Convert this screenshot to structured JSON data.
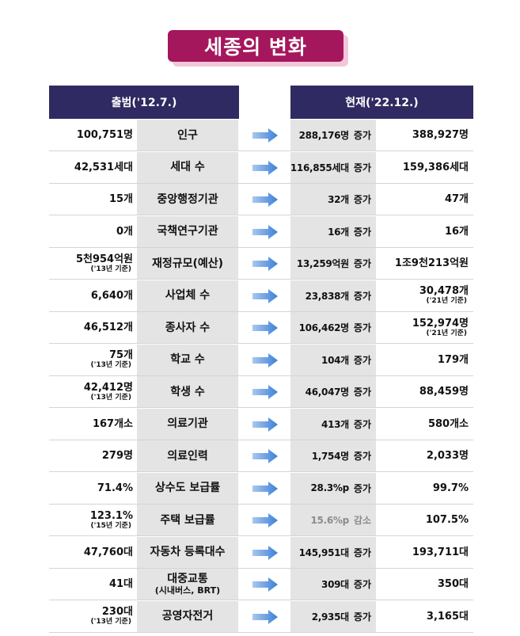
{
  "title": "세종의 변화",
  "headers": {
    "before": "출범('12.7.)",
    "after": "현재('22.12.)"
  },
  "colors": {
    "title_bg": "#a5175c",
    "header_bg": "#302a62",
    "label_bg": "#e4e4e4",
    "arrow": "#3d7fd6",
    "decrease_text": "#8c8c8c"
  },
  "icon": "right-arrow-icon",
  "rows": [
    {
      "label": "인구",
      "label_sub": "",
      "before": "100,751명",
      "before_note": "",
      "change": "288,176명",
      "direction": "증가",
      "after": "388,927명",
      "after_note": ""
    },
    {
      "label": "세대 수",
      "label_sub": "",
      "before": "42,531세대",
      "before_note": "",
      "change": "116,855세대",
      "direction": "증가",
      "after": "159,386세대",
      "after_note": ""
    },
    {
      "label": "중앙행정기관",
      "label_sub": "",
      "before": "15개",
      "before_note": "",
      "change": "32개",
      "direction": "증가",
      "after": "47개",
      "after_note": ""
    },
    {
      "label": "국책연구기관",
      "label_sub": "",
      "before": "0개",
      "before_note": "",
      "change": "16개",
      "direction": "증가",
      "after": "16개",
      "after_note": ""
    },
    {
      "label": "재정규모(예산)",
      "label_sub": "",
      "before": "5천954억원",
      "before_note": "('13년 기준)",
      "change": "13,259억원",
      "direction": "증가",
      "after": "1조9천213억원",
      "after_note": ""
    },
    {
      "label": "사업체 수",
      "label_sub": "",
      "before": "6,640개",
      "before_note": "",
      "change": "23,838개",
      "direction": "증가",
      "after": "30,478개",
      "after_note": "('21년 기준)"
    },
    {
      "label": "종사자 수",
      "label_sub": "",
      "before": "46,512개",
      "before_note": "",
      "change": "106,462명",
      "direction": "증가",
      "after": "152,974명",
      "after_note": "('21년 기준)"
    },
    {
      "label": "학교 수",
      "label_sub": "",
      "before": "75개",
      "before_note": "('13년 기준)",
      "change": "104개",
      "direction": "증가",
      "after": "179개",
      "after_note": ""
    },
    {
      "label": "학생 수",
      "label_sub": "",
      "before": "42,412명",
      "before_note": "('13년 기준)",
      "change": "46,047명",
      "direction": "증가",
      "after": "88,459명",
      "after_note": ""
    },
    {
      "label": "의료기관",
      "label_sub": "",
      "before": "167개소",
      "before_note": "",
      "change": "413개",
      "direction": "증가",
      "after": "580개소",
      "after_note": ""
    },
    {
      "label": "의료인력",
      "label_sub": "",
      "before": "279명",
      "before_note": "",
      "change": "1,754명",
      "direction": "증가",
      "after": "2,033명",
      "after_note": ""
    },
    {
      "label": "상수도 보급률",
      "label_sub": "",
      "before": "71.4%",
      "before_note": "",
      "change": "28.3%p",
      "direction": "증가",
      "after": "99.7%",
      "after_note": ""
    },
    {
      "label": "주택 보급률",
      "label_sub": "",
      "before": "123.1%",
      "before_note": "('15년 기준)",
      "change": "15.6%p",
      "direction": "감소",
      "after": "107.5%",
      "after_note": ""
    },
    {
      "label": "자동차 등록대수",
      "label_sub": "",
      "before": "47,760대",
      "before_note": "",
      "change": "145,951대",
      "direction": "증가",
      "after": "193,711대",
      "after_note": ""
    },
    {
      "label": "대중교통",
      "label_sub": "(시내버스, BRT)",
      "before": "41대",
      "before_note": "",
      "change": "309대",
      "direction": "증가",
      "after": "350대",
      "after_note": ""
    },
    {
      "label": "공영자전거",
      "label_sub": "",
      "before": "230대",
      "before_note": "('13년 기준)",
      "change": "2,935대",
      "direction": "증가",
      "after": "3,165대",
      "after_note": ""
    }
  ]
}
